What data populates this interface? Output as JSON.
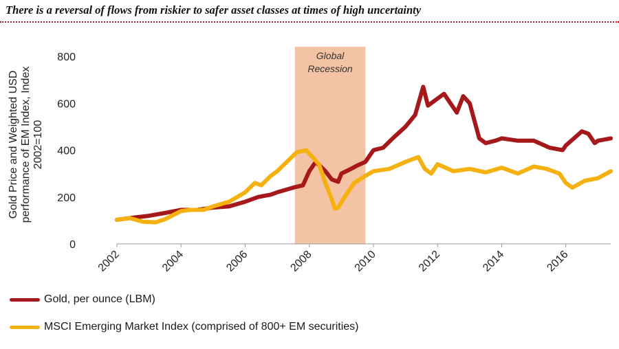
{
  "title": "There is a reversal of flows from riskier to safer asset classes at times of high uncertainty",
  "chart_data": {
    "type": "line",
    "title": "There is a reversal of flows from riskier to safer asset classes at times of high uncertainty",
    "ylabel": "Gold Price and Weighted USD performance of EM Index, Index 2002=100",
    "xlabel": "",
    "xlim": [
      2002,
      2017.4
    ],
    "ylim": [
      0,
      800
    ],
    "x_ticks": [
      "2002",
      "2004",
      "2006",
      "2008",
      "2010",
      "2012",
      "2014",
      "2016"
    ],
    "y_ticks": [
      "0",
      "200",
      "400",
      "600",
      "800"
    ],
    "grid": false,
    "legend_position": "bottom-left",
    "shaded_region": {
      "label_line1": "Global",
      "label_line2": "Recession",
      "x_start": 2007.55,
      "x_end": 2009.75,
      "color": "#f4c2a4"
    },
    "series": [
      {
        "name": "Gold, per ounce (LBM)",
        "color": "#a6191b",
        "x": [
          2002.0,
          2002.5,
          2003.0,
          2003.5,
          2004.0,
          2004.5,
          2005.0,
          2005.5,
          2006.0,
          2006.4,
          2006.8,
          2007.0,
          2007.5,
          2007.8,
          2008.0,
          2008.2,
          2008.5,
          2008.7,
          2008.9,
          2009.0,
          2009.3,
          2009.5,
          2009.75,
          2010.0,
          2010.3,
          2010.6,
          2011.0,
          2011.3,
          2011.55,
          2011.7,
          2011.9,
          2012.2,
          2012.6,
          2012.8,
          2013.0,
          2013.3,
          2013.5,
          2013.8,
          2014.0,
          2014.5,
          2015.0,
          2015.5,
          2015.9,
          2016.0,
          2016.5,
          2016.7,
          2016.9,
          2017.0,
          2017.4
        ],
        "y": [
          103,
          112,
          120,
          132,
          145,
          145,
          155,
          160,
          180,
          200,
          210,
          220,
          240,
          250,
          310,
          350,
          310,
          275,
          265,
          300,
          320,
          335,
          350,
          400,
          410,
          450,
          500,
          550,
          670,
          590,
          610,
          640,
          560,
          630,
          600,
          450,
          430,
          440,
          450,
          440,
          440,
          410,
          400,
          420,
          480,
          470,
          430,
          440,
          450
        ]
      },
      {
        "name": "MSCI Emerging Market Index (comprised of 800+ EM securities)",
        "color": "#f5b110",
        "x": [
          2002.0,
          2002.4,
          2002.8,
          2003.2,
          2003.5,
          2004.0,
          2004.3,
          2004.7,
          2005.0,
          2005.5,
          2006.0,
          2006.3,
          2006.5,
          2006.8,
          2007.0,
          2007.3,
          2007.6,
          2007.9,
          2008.1,
          2008.3,
          2008.5,
          2008.7,
          2008.8,
          2008.9,
          2009.1,
          2009.4,
          2009.75,
          2010.0,
          2010.5,
          2011.0,
          2011.4,
          2011.6,
          2011.8,
          2012.0,
          2012.5,
          2013.0,
          2013.5,
          2014.0,
          2014.5,
          2015.0,
          2015.4,
          2015.8,
          2016.0,
          2016.2,
          2016.6,
          2017.0,
          2017.4
        ],
        "y": [
          103,
          110,
          95,
          92,
          105,
          140,
          145,
          145,
          160,
          180,
          220,
          260,
          250,
          290,
          310,
          350,
          390,
          400,
          370,
          340,
          260,
          190,
          150,
          155,
          200,
          260,
          290,
          310,
          320,
          350,
          370,
          320,
          300,
          340,
          310,
          320,
          305,
          325,
          300,
          330,
          320,
          300,
          260,
          240,
          270,
          280,
          310
        ]
      }
    ]
  }
}
